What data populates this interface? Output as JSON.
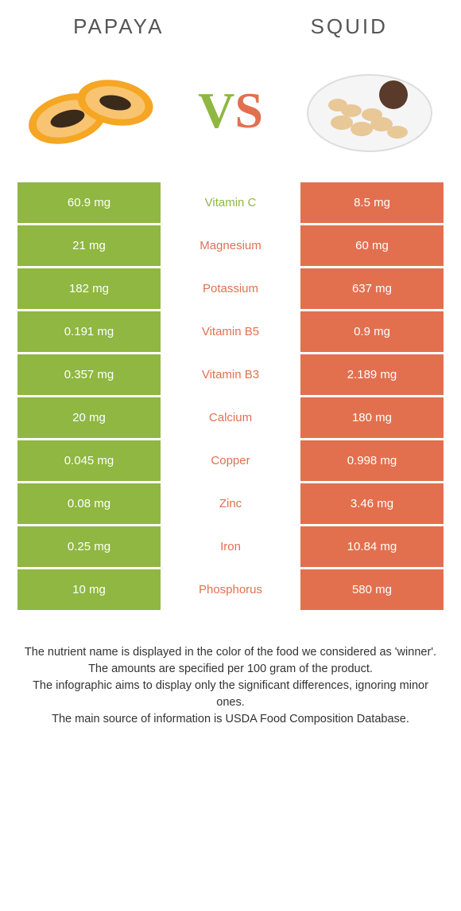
{
  "header": {
    "left_title": "Papaya",
    "right_title": "Squid",
    "vs_v": "V",
    "vs_s": "S"
  },
  "colors": {
    "left": "#8fb742",
    "right": "#e2704f",
    "left_text": "#8fb742",
    "right_text": "#e2704f"
  },
  "rows": [
    {
      "nutrient": "Vitamin C",
      "left": "60.9 mg",
      "right": "8.5 mg",
      "winner": "left"
    },
    {
      "nutrient": "Magnesium",
      "left": "21 mg",
      "right": "60 mg",
      "winner": "right"
    },
    {
      "nutrient": "Potassium",
      "left": "182 mg",
      "right": "637 mg",
      "winner": "right"
    },
    {
      "nutrient": "Vitamin B5",
      "left": "0.191 mg",
      "right": "0.9 mg",
      "winner": "right"
    },
    {
      "nutrient": "Vitamin B3",
      "left": "0.357 mg",
      "right": "2.189 mg",
      "winner": "right"
    },
    {
      "nutrient": "Calcium",
      "left": "20 mg",
      "right": "180 mg",
      "winner": "right"
    },
    {
      "nutrient": "Copper",
      "left": "0.045 mg",
      "right": "0.998 mg",
      "winner": "right"
    },
    {
      "nutrient": "Zinc",
      "left": "0.08 mg",
      "right": "3.46 mg",
      "winner": "right"
    },
    {
      "nutrient": "Iron",
      "left": "0.25 mg",
      "right": "10.84 mg",
      "winner": "right"
    },
    {
      "nutrient": "Phosphorus",
      "left": "10 mg",
      "right": "580 mg",
      "winner": "right"
    }
  ],
  "footer": {
    "line1": "The nutrient name is displayed in the color of the food we considered as 'winner'.",
    "line2": "The amounts are specified per 100 gram of the product.",
    "line3": "The infographic aims to display only the significant differences, ignoring minor ones.",
    "line4": "The main source of information is USDA Food Composition Database."
  }
}
